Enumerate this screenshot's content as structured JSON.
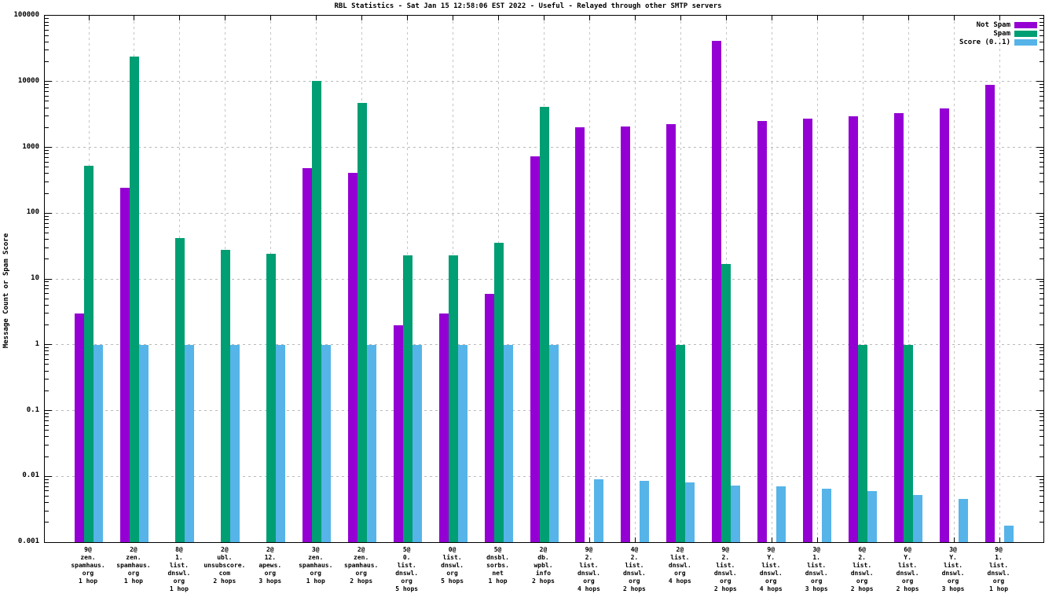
{
  "title": "RBL Statistics - Sat Jan 15 12:58:06 EST 2022 - Useful - Relayed through other SMTP servers",
  "ylabel": "Message Count or Spam Score",
  "colors": {
    "not_spam": "#9400d3",
    "spam": "#009e73",
    "score": "#56b4e9",
    "grid": "#bbbbbb",
    "axis": "#000000"
  },
  "chart_data": {
    "type": "bar",
    "scale": "log",
    "title": "RBL Statistics - Sat Jan 15 12:58:06 EST 2022 - Useful - Relayed through other SMTP servers",
    "xlabel": "",
    "ylabel": "Message Count or Spam Score",
    "ylim": [
      0.001,
      100000
    ],
    "ytick_labels": [
      "100000",
      "10000",
      "1000",
      "100",
      "10",
      "1",
      "0.1",
      "0.01",
      "0.001"
    ],
    "grid": true,
    "legend_position": "top-right-inside",
    "categories": [
      [
        "9@",
        "zen.",
        "spamhaus.",
        "org",
        "1 hop"
      ],
      [
        "2@",
        "zen.",
        "spamhaus.",
        "org",
        "1 hop"
      ],
      [
        "8@",
        "1.",
        "list.",
        "dnswl.",
        "org",
        "1 hop"
      ],
      [
        "2@",
        "ubl.",
        "unsubscore.",
        "com",
        "2 hops"
      ],
      [
        "2@",
        "12.",
        "apews.",
        "org",
        "3 hops"
      ],
      [
        "3@",
        "zen.",
        "spamhaus.",
        "org",
        "1 hop"
      ],
      [
        "2@",
        "zen.",
        "spamhaus.",
        "org",
        "2 hops"
      ],
      [
        "5@",
        "0.",
        "list.",
        "dnswl.",
        "org",
        "5 hops"
      ],
      [
        "0@",
        "list.",
        "dnswl.",
        "org",
        "5 hops"
      ],
      [
        "5@",
        "dnsbl.",
        "sorbs.",
        "net",
        "1 hop"
      ],
      [
        "2@",
        "db.",
        "wpbl.",
        "info",
        "2 hops"
      ],
      [
        "9@",
        "2.",
        "list.",
        "dnswl.",
        "org",
        "4 hops"
      ],
      [
        "4@",
        "2.",
        "list.",
        "dnswl.",
        "org",
        "2 hops"
      ],
      [
        "2@",
        "list.",
        "dnswl.",
        "org",
        "4 hops"
      ],
      [
        "9@",
        "2.",
        "list.",
        "dnswl.",
        "org",
        "2 hops"
      ],
      [
        "9@",
        "Y.",
        "list.",
        "dnswl.",
        "org",
        "4 hops"
      ],
      [
        "3@",
        "1.",
        "list.",
        "dnswl.",
        "org",
        "3 hops"
      ],
      [
        "6@",
        "2.",
        "list.",
        "dnswl.",
        "org",
        "2 hops"
      ],
      [
        "6@",
        "Y.",
        "list.",
        "dnswl.",
        "org",
        "2 hops"
      ],
      [
        "3@",
        "Y.",
        "list.",
        "dnswl.",
        "org",
        "3 hops"
      ],
      [
        "9@",
        "1.",
        "list.",
        "dnswl.",
        "org",
        "1 hop"
      ]
    ],
    "series": [
      {
        "name": "Not Spam",
        "color": "#9400d3",
        "values": [
          3,
          240,
          null,
          null,
          null,
          480,
          410,
          2,
          3,
          6,
          730,
          2000,
          2100,
          2250,
          41000,
          2500,
          2700,
          3000,
          3300,
          3900,
          9000
        ]
      },
      {
        "name": "Spam",
        "color": "#009e73",
        "values": [
          520,
          24000,
          42,
          28,
          24,
          10200,
          4700,
          23,
          23,
          35,
          4100,
          null,
          null,
          1,
          17,
          null,
          null,
          1,
          1,
          null,
          null
        ]
      },
      {
        "name": "Score (0..1)",
        "color": "#56b4e9",
        "values": [
          1,
          1,
          1,
          1,
          1,
          1,
          1,
          1,
          1,
          1,
          1,
          0.009,
          0.0085,
          0.008,
          0.0072,
          0.007,
          0.0065,
          0.006,
          0.0052,
          0.0045,
          0.0018
        ]
      }
    ]
  }
}
